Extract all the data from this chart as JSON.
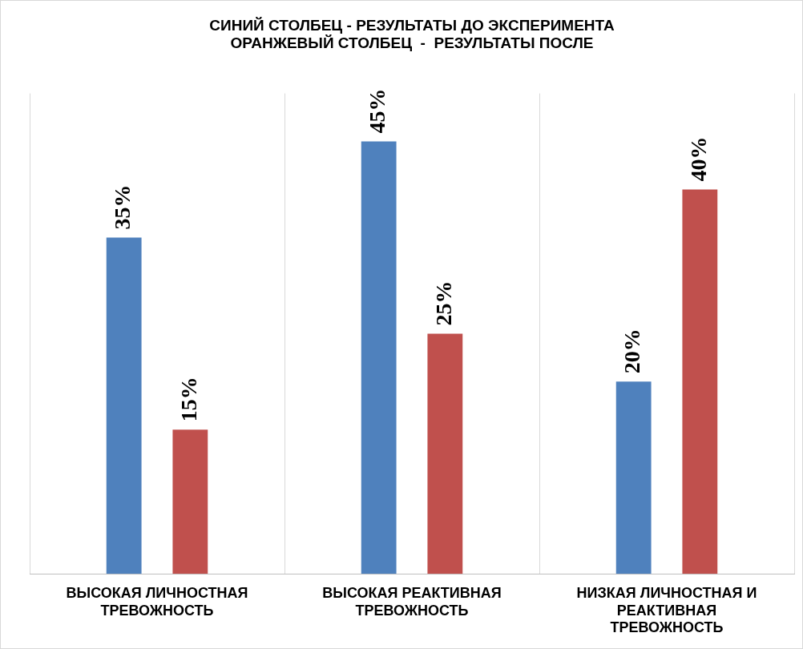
{
  "chart_data": {
    "type": "bar",
    "title": "СИНИЙ СТОЛБЕЦ - РЕЗУЛЬТАТЫ ДО ЭКСПЕРИМЕНТА\nОРАНЖЕВЫЙ СТОЛБЕЦ  -  РЕЗУЛЬТАТЫ ПОСЛЕ",
    "categories": [
      "ВЫСОКАЯ ЛИЧНОСТНАЯ ТРЕВОЖНОСТЬ",
      "ВЫСОКАЯ РЕАКТИВНАЯ ТРЕВОЖНОСТЬ",
      "НИЗКАЯ ЛИЧНОСТНАЯ И РЕАКТИВНАЯ ТРЕВОЖНОСТЬ"
    ],
    "series": [
      {
        "color": "#4f81bd",
        "values": [
          35,
          45,
          20
        ],
        "value_labels": [
          "35%",
          "45%",
          "20%"
        ]
      },
      {
        "color": "#c0504d",
        "values": [
          15,
          25,
          40
        ],
        "value_labels": [
          "15%",
          "25%",
          "40%"
        ]
      }
    ],
    "grid": "x",
    "tick_labels": "x"
  }
}
